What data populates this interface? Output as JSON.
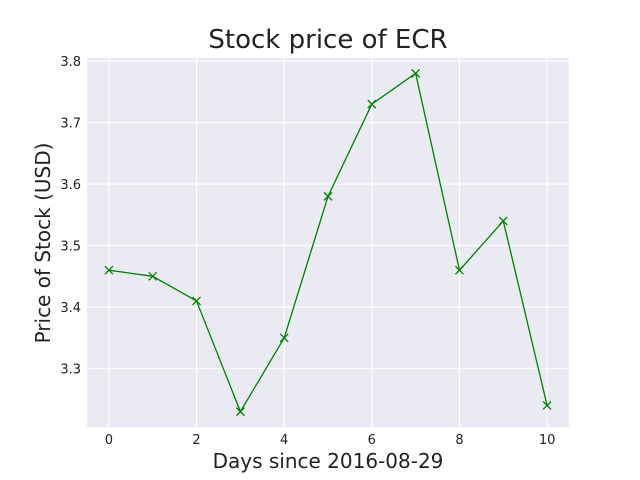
{
  "chart_data": {
    "type": "line",
    "title": "Stock price of ECR",
    "xlabel": "Days since 2016-08-29",
    "ylabel": "Price of Stock (USD)",
    "x": [
      0,
      1,
      2,
      3,
      4,
      5,
      6,
      7,
      8,
      9,
      10
    ],
    "series": [
      {
        "values": [
          3.46,
          3.45,
          3.41,
          3.23,
          3.35,
          3.58,
          3.73,
          3.78,
          3.46,
          3.54,
          3.24
        ]
      }
    ],
    "xlim": [
      -0.5,
      10.5
    ],
    "ylim": [
      3.205,
      3.805
    ],
    "xticks": [
      "0",
      "2",
      "4",
      "6",
      "8",
      "10"
    ],
    "yticks": [
      "3.3",
      "3.4",
      "3.5",
      "3.6",
      "3.7",
      "3.8"
    ],
    "grid": true,
    "line_color": "#008000",
    "background_color": "#eaeaf2",
    "marker": "x"
  }
}
